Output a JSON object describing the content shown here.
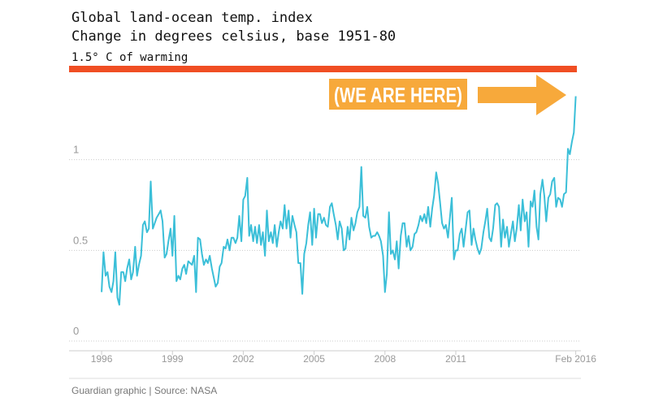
{
  "chart_data": {
    "type": "line",
    "title": "Global land-ocean temp. index",
    "subtitle": "Change in degrees celsius, base 1951-80",
    "threshold": {
      "value": 1.5,
      "label": "1.5° C of warming",
      "color": "#f04e23"
    },
    "annotation": "(WE ARE HERE)",
    "source": "Guardian graphic | Source: NASA",
    "xlim": [
      1995,
      2016.3
    ],
    "xticks": [
      1996,
      1999,
      2002,
      2005,
      2008,
      2011,
      {
        "value": 2016.08,
        "label": "Feb 2016"
      }
    ],
    "ylim": [
      0,
      1.5
    ],
    "yticks": [
      0,
      0.5,
      1
    ],
    "grid": true,
    "x": [
      1996,
      1996.08,
      1996.17,
      1996.25,
      1996.33,
      1996.42,
      1996.5,
      1996.58,
      1996.67,
      1996.75,
      1996.83,
      1996.92,
      1997,
      1997.08,
      1997.17,
      1997.25,
      1997.33,
      1997.42,
      1997.5,
      1997.58,
      1997.67,
      1997.75,
      1997.83,
      1997.92,
      1998,
      1998.08,
      1998.17,
      1998.25,
      1998.33,
      1998.42,
      1998.5,
      1998.58,
      1998.67,
      1998.75,
      1998.83,
      1998.92,
      1999,
      1999.08,
      1999.17,
      1999.25,
      1999.33,
      1999.42,
      1999.5,
      1999.58,
      1999.67,
      1999.75,
      1999.83,
      1999.92,
      2000,
      2000.08,
      2000.17,
      2000.25,
      2000.33,
      2000.42,
      2000.5,
      2000.58,
      2000.67,
      2000.75,
      2000.83,
      2000.92,
      2001,
      2001.08,
      2001.17,
      2001.25,
      2001.33,
      2001.42,
      2001.5,
      2001.58,
      2001.67,
      2001.75,
      2001.83,
      2001.92,
      2002,
      2002.08,
      2002.17,
      2002.25,
      2002.33,
      2002.42,
      2002.5,
      2002.58,
      2002.67,
      2002.75,
      2002.83,
      2002.92,
      2003,
      2003.08,
      2003.17,
      2003.25,
      2003.33,
      2003.42,
      2003.5,
      2003.58,
      2003.67,
      2003.75,
      2003.83,
      2003.92,
      2004,
      2004.08,
      2004.17,
      2004.25,
      2004.33,
      2004.42,
      2004.5,
      2004.58,
      2004.67,
      2004.75,
      2004.83,
      2004.92,
      2005,
      2005.08,
      2005.17,
      2005.25,
      2005.33,
      2005.42,
      2005.5,
      2005.58,
      2005.67,
      2005.75,
      2005.83,
      2005.92,
      2006,
      2006.08,
      2006.17,
      2006.25,
      2006.33,
      2006.42,
      2006.5,
      2006.58,
      2006.67,
      2006.75,
      2006.83,
      2006.92,
      2007,
      2007.08,
      2007.17,
      2007.25,
      2007.33,
      2007.42,
      2007.5,
      2007.58,
      2007.67,
      2007.75,
      2007.83,
      2007.92,
      2008,
      2008.08,
      2008.17,
      2008.25,
      2008.33,
      2008.42,
      2008.5,
      2008.58,
      2008.67,
      2008.75,
      2008.83,
      2008.92,
      2009,
      2009.08,
      2009.17,
      2009.25,
      2009.33,
      2009.42,
      2009.5,
      2009.58,
      2009.67,
      2009.75,
      2009.83,
      2009.92,
      2010,
      2010.08,
      2010.17,
      2010.25,
      2010.33,
      2010.42,
      2010.5,
      2010.58,
      2010.67,
      2010.75,
      2010.83,
      2010.92,
      2011,
      2011.08,
      2011.17,
      2011.25,
      2011.33,
      2011.42,
      2011.5,
      2011.58,
      2011.67,
      2011.75,
      2011.83,
      2011.92,
      2012,
      2012.08,
      2012.17,
      2012.25,
      2012.33,
      2012.42,
      2012.5,
      2012.58,
      2012.67,
      2012.75,
      2012.83,
      2012.92,
      2013,
      2013.08,
      2013.17,
      2013.25,
      2013.33,
      2013.42,
      2013.5,
      2013.58,
      2013.67,
      2013.75,
      2013.83,
      2013.92,
      2014,
      2014.08,
      2014.17,
      2014.25,
      2014.33,
      2014.42,
      2014.5,
      2014.58,
      2014.67,
      2014.75,
      2014.83,
      2014.92,
      2015,
      2015.08,
      2015.17,
      2015.25,
      2015.33,
      2015.42,
      2015.5,
      2015.58,
      2015.67,
      2015.75,
      2015.83,
      2015.92,
      2016,
      2016.08
    ],
    "series": [
      {
        "color": "#3bbfd8",
        "values": [
          0.27,
          0.49,
          0.36,
          0.38,
          0.3,
          0.27,
          0.33,
          0.49,
          0.24,
          0.2,
          0.38,
          0.38,
          0.33,
          0.4,
          0.45,
          0.34,
          0.38,
          0.52,
          0.36,
          0.42,
          0.47,
          0.64,
          0.66,
          0.6,
          0.62,
          0.88,
          0.62,
          0.65,
          0.68,
          0.7,
          0.72,
          0.66,
          0.46,
          0.48,
          0.55,
          0.62,
          0.47,
          0.69,
          0.33,
          0.36,
          0.34,
          0.4,
          0.42,
          0.37,
          0.44,
          0.43,
          0.42,
          0.47,
          0.27,
          0.57,
          0.56,
          0.48,
          0.42,
          0.45,
          0.43,
          0.47,
          0.4,
          0.35,
          0.3,
          0.32,
          0.41,
          0.43,
          0.52,
          0.51,
          0.56,
          0.5,
          0.57,
          0.57,
          0.54,
          0.57,
          0.69,
          0.55,
          0.78,
          0.8,
          0.9,
          0.58,
          0.64,
          0.55,
          0.63,
          0.54,
          0.64,
          0.53,
          0.6,
          0.47,
          0.72,
          0.55,
          0.6,
          0.54,
          0.64,
          0.52,
          0.6,
          0.66,
          0.62,
          0.75,
          0.62,
          0.72,
          0.57,
          0.69,
          0.64,
          0.6,
          0.43,
          0.43,
          0.26,
          0.48,
          0.54,
          0.64,
          0.71,
          0.53,
          0.73,
          0.57,
          0.7,
          0.7,
          0.65,
          0.68,
          0.64,
          0.63,
          0.74,
          0.76,
          0.7,
          0.64,
          0.56,
          0.66,
          0.62,
          0.5,
          0.51,
          0.63,
          0.56,
          0.68,
          0.61,
          0.65,
          0.71,
          0.74,
          0.96,
          0.69,
          0.68,
          0.74,
          0.63,
          0.57,
          0.58,
          0.58,
          0.6,
          0.58,
          0.55,
          0.47,
          0.27,
          0.37,
          0.71,
          0.48,
          0.5,
          0.45,
          0.55,
          0.4,
          0.58,
          0.65,
          0.65,
          0.52,
          0.58,
          0.5,
          0.52,
          0.59,
          0.6,
          0.64,
          0.69,
          0.66,
          0.7,
          0.65,
          0.74,
          0.63,
          0.73,
          0.8,
          0.93,
          0.87,
          0.77,
          0.65,
          0.62,
          0.64,
          0.57,
          0.68,
          0.79,
          0.45,
          0.5,
          0.5,
          0.59,
          0.62,
          0.52,
          0.62,
          0.71,
          0.72,
          0.53,
          0.62,
          0.56,
          0.51,
          0.48,
          0.51,
          0.6,
          0.66,
          0.73,
          0.57,
          0.55,
          0.62,
          0.75,
          0.76,
          0.74,
          0.52,
          0.67,
          0.57,
          0.63,
          0.52,
          0.59,
          0.66,
          0.55,
          0.62,
          0.75,
          0.61,
          0.78,
          0.66,
          0.71,
          0.52,
          0.77,
          0.74,
          0.83,
          0.63,
          0.56,
          0.81,
          0.89,
          0.8,
          0.66,
          0.79,
          0.81,
          0.88,
          0.9,
          0.74,
          0.79,
          0.78,
          0.74,
          0.81,
          0.82,
          1.06,
          1.03,
          1.1,
          1.15,
          1.35
        ]
      }
    ]
  }
}
